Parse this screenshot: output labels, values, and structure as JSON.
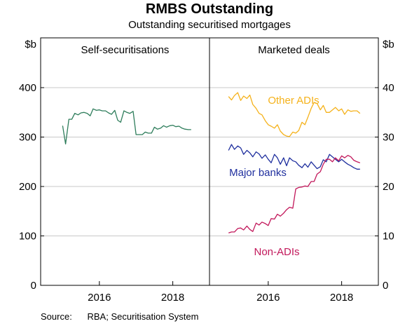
{
  "header": {
    "title": "RMBS Outstanding",
    "subtitle": "Outstanding securitised mortgages"
  },
  "footer": {
    "source_label": "Source:",
    "source_text": "RBA; Securitisation System"
  },
  "colors": {
    "self": "#2e7d5b",
    "other_adis": "#f5b21b",
    "major_banks": "#1f2f9e",
    "non_adis": "#c2185b",
    "axis": "#000000",
    "grid": "#c8c8c8"
  },
  "chart_data": [
    {
      "type": "line",
      "panel_title": "Self-securitisations",
      "ylabel": "$b",
      "ylim": [
        0,
        400
      ],
      "yticks": [
        0,
        100,
        200,
        300,
        400
      ],
      "xlim": [
        2014.4,
        2019.0
      ],
      "xticks": [
        {
          "value": 2016,
          "label": "2016"
        },
        {
          "value": 2018,
          "label": "2018"
        }
      ],
      "grid": true,
      "series": [
        {
          "name": "",
          "color_key": "self",
          "x": [
            2015.0,
            2015.08,
            2015.17,
            2015.25,
            2015.33,
            2015.42,
            2015.5,
            2015.58,
            2015.67,
            2015.75,
            2015.83,
            2015.92,
            2016.0,
            2016.08,
            2016.17,
            2016.25,
            2016.33,
            2016.42,
            2016.5,
            2016.58,
            2016.67,
            2016.75,
            2016.83,
            2016.92,
            2017.0,
            2017.08,
            2017.17,
            2017.25,
            2017.33,
            2017.42,
            2017.5,
            2017.58,
            2017.67,
            2017.75,
            2017.83,
            2017.92,
            2018.0,
            2018.08,
            2018.17,
            2018.25,
            2018.33,
            2018.42,
            2018.5
          ],
          "values": [
            323,
            286,
            336,
            336,
            348,
            345,
            349,
            350,
            348,
            343,
            357,
            354,
            355,
            353,
            353,
            349,
            346,
            354,
            334,
            330,
            353,
            350,
            348,
            352,
            305,
            305,
            305,
            310,
            308,
            308,
            320,
            316,
            318,
            323,
            320,
            323,
            324,
            321,
            322,
            318,
            316,
            315,
            315
          ]
        }
      ]
    },
    {
      "type": "line",
      "panel_title": "Marketed deals",
      "ylabel": "$b",
      "ylim": [
        0,
        40
      ],
      "yticks": [
        0,
        10,
        20,
        30,
        40
      ],
      "xlim": [
        2014.4,
        2019.0
      ],
      "xticks": [
        {
          "value": 2016,
          "label": "2016"
        },
        {
          "value": 2018,
          "label": "2018"
        }
      ],
      "grid": true,
      "series": [
        {
          "name": "Other ADIs",
          "color_key": "other_adis",
          "x": [
            2014.92,
            2015.0,
            2015.08,
            2015.17,
            2015.25,
            2015.33,
            2015.42,
            2015.5,
            2015.58,
            2015.67,
            2015.75,
            2015.83,
            2015.92,
            2016.0,
            2016.08,
            2016.17,
            2016.25,
            2016.33,
            2016.42,
            2016.5,
            2016.58,
            2016.67,
            2016.75,
            2016.83,
            2016.92,
            2017.0,
            2017.08,
            2017.17,
            2017.25,
            2017.33,
            2017.42,
            2017.5,
            2017.58,
            2017.67,
            2017.75,
            2017.83,
            2017.92,
            2018.0,
            2018.08,
            2018.17,
            2018.25,
            2018.33,
            2018.42,
            2018.5
          ],
          "values": [
            38.2,
            37.5,
            38.4,
            39.0,
            37.4,
            38.3,
            37.8,
            38.5,
            36.6,
            35.8,
            34.8,
            34.5,
            33.3,
            32.5,
            32.2,
            31.8,
            32.5,
            31.2,
            30.5,
            30.2,
            30.1,
            31.0,
            30.8,
            31.3,
            33.0,
            32.5,
            34.0,
            35.8,
            37.0,
            36.8,
            35.5,
            36.4,
            35.0,
            35.0,
            35.5,
            36.0,
            35.3,
            35.7,
            34.6,
            35.5,
            35.2,
            35.3,
            35.3,
            34.8
          ]
        },
        {
          "name": "Major banks",
          "color_key": "major_banks",
          "x": [
            2014.92,
            2015.0,
            2015.08,
            2015.17,
            2015.25,
            2015.33,
            2015.42,
            2015.5,
            2015.58,
            2015.67,
            2015.75,
            2015.83,
            2015.92,
            2016.0,
            2016.08,
            2016.17,
            2016.25,
            2016.33,
            2016.42,
            2016.5,
            2016.58,
            2016.67,
            2016.75,
            2016.83,
            2016.92,
            2017.0,
            2017.08,
            2017.17,
            2017.25,
            2017.33,
            2017.42,
            2017.5,
            2017.58,
            2017.67,
            2017.75,
            2017.83,
            2017.92,
            2018.0,
            2018.08,
            2018.17,
            2018.25,
            2018.33,
            2018.42,
            2018.5
          ],
          "values": [
            27.3,
            28.5,
            27.5,
            28.2,
            27.8,
            26.5,
            27.3,
            26.8,
            26.0,
            27.0,
            26.6,
            25.7,
            26.4,
            25.5,
            24.8,
            26.5,
            25.8,
            24.5,
            25.8,
            24.2,
            25.8,
            25.2,
            25.0,
            24.3,
            23.8,
            24.6,
            23.9,
            25.0,
            24.3,
            23.6,
            24.0,
            25.4,
            25.0,
            26.5,
            26.0,
            25.5,
            25.0,
            25.5,
            25.0,
            24.5,
            24.2,
            23.8,
            23.5,
            23.5
          ]
        },
        {
          "name": "Non-ADIs",
          "color_key": "non_adis",
          "x": [
            2014.92,
            2015.0,
            2015.08,
            2015.17,
            2015.25,
            2015.33,
            2015.42,
            2015.5,
            2015.58,
            2015.67,
            2015.75,
            2015.83,
            2015.92,
            2016.0,
            2016.08,
            2016.17,
            2016.25,
            2016.33,
            2016.42,
            2016.5,
            2016.58,
            2016.67,
            2016.75,
            2016.83,
            2016.92,
            2017.0,
            2017.08,
            2017.17,
            2017.25,
            2017.33,
            2017.42,
            2017.5,
            2017.58,
            2017.67,
            2017.75,
            2017.83,
            2017.92,
            2018.0,
            2018.08,
            2018.17,
            2018.25,
            2018.33,
            2018.42,
            2018.5
          ],
          "values": [
            10.6,
            10.8,
            10.8,
            11.5,
            11.6,
            11.2,
            12.0,
            11.3,
            10.9,
            12.6,
            12.2,
            12.8,
            12.5,
            12.1,
            13.5,
            13.4,
            14.4,
            14.0,
            14.6,
            15.3,
            15.8,
            15.6,
            19.5,
            19.8,
            19.9,
            20.1,
            20.0,
            21.0,
            21.0,
            22.5,
            23.0,
            24.5,
            25.5,
            25.5,
            25.0,
            25.8,
            25.2,
            26.2,
            25.8,
            26.3,
            26.0,
            25.3,
            25.0,
            24.8
          ]
        }
      ]
    }
  ]
}
